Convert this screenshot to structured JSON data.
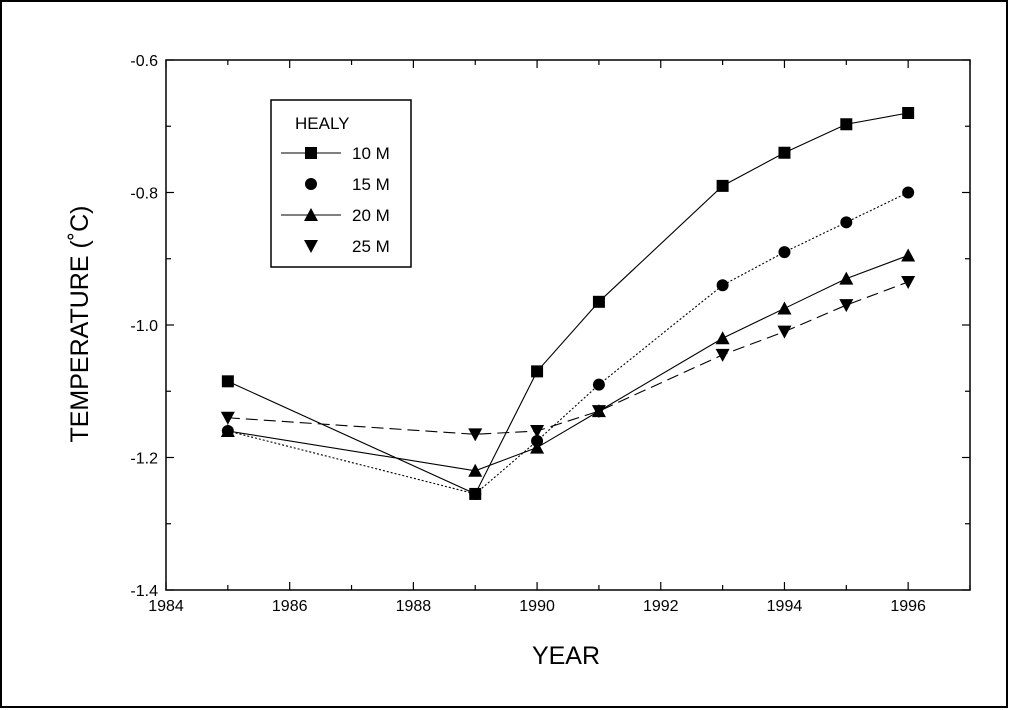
{
  "chart_data": {
    "type": "line",
    "title": "",
    "xlabel": "YEAR",
    "ylabel": "TEMPERATURE (˚C)",
    "xlim": [
      1984,
      1997
    ],
    "ylim": [
      -1.4,
      -0.6
    ],
    "x_ticks": [
      "1984",
      "1986",
      "1988",
      "1990",
      "1992",
      "1994",
      "1996"
    ],
    "y_ticks": [
      "-1.4",
      "-1.2",
      "-1.0",
      "-0.8",
      "-0.6"
    ],
    "grid": false,
    "legend": {
      "title": "HEALY",
      "placement": "top-left"
    },
    "series": [
      {
        "name": "10 M",
        "marker": "square",
        "line": "solid",
        "x": [
          1985,
          1989,
          1990,
          1991,
          1993,
          1994,
          1995,
          1996
        ],
        "y": [
          -1.085,
          -1.255,
          -1.07,
          -0.965,
          -0.79,
          -0.74,
          -0.697,
          -0.68
        ]
      },
      {
        "name": "15 M",
        "marker": "circle",
        "line": "dotted",
        "x": [
          1985,
          1989,
          1990,
          1991,
          1993,
          1994,
          1995,
          1996
        ],
        "y": [
          -1.16,
          -1.255,
          -1.175,
          -1.09,
          -0.94,
          -0.89,
          -0.845,
          -0.8
        ]
      },
      {
        "name": "20 M",
        "marker": "triangle-up",
        "line": "solid",
        "x": [
          1985,
          1989,
          1990,
          1991,
          1993,
          1994,
          1995,
          1996
        ],
        "y": [
          -1.16,
          -1.22,
          -1.185,
          -1.13,
          -1.02,
          -0.975,
          -0.93,
          -0.895
        ]
      },
      {
        "name": "25 M",
        "marker": "triangle-down",
        "line": "dashed",
        "x": [
          1985,
          1989,
          1990,
          1991,
          1993,
          1994,
          1995,
          1996
        ],
        "y": [
          -1.14,
          -1.165,
          -1.16,
          -1.13,
          -1.045,
          -1.01,
          -0.97,
          -0.935
        ]
      }
    ]
  }
}
